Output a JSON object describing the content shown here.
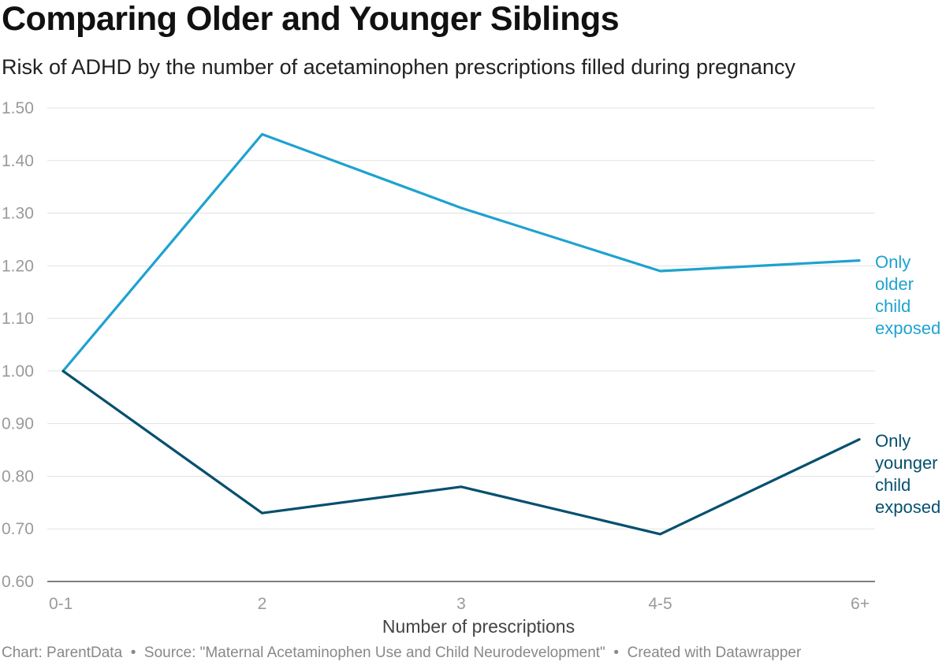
{
  "title": "Comparing Older and Younger Siblings",
  "subtitle": "Risk of ADHD by the number of acetaminophen prescriptions filled during pregnancy",
  "footer": {
    "chart": "Chart: ParentData",
    "source": "Source: \"Maternal Acetaminophen Use and Child Neurodevelopment\"",
    "created": "Created with Datawrapper",
    "separator": "•"
  },
  "chart_data": {
    "type": "line",
    "title": "Comparing Older and Younger Siblings",
    "subtitle": "Risk of ADHD by the number of acetaminophen prescriptions filled during pregnancy",
    "xlabel": "Number of prescriptions",
    "ylabel": "",
    "categories": [
      "0-1",
      "2",
      "3",
      "4-5",
      "6+"
    ],
    "ylim": [
      0.6,
      1.5
    ],
    "yticks": [
      "0.60",
      "0.70",
      "0.80",
      "0.90",
      "1.00",
      "1.10",
      "1.20",
      "1.30",
      "1.40",
      "1.50"
    ],
    "grid": true,
    "series": [
      {
        "name": "Only older child exposed",
        "label_lines": [
          "Only",
          "older",
          "child",
          "exposed"
        ],
        "color": "#1ea2d0",
        "values": [
          1.0,
          1.45,
          1.31,
          1.19,
          1.21
        ]
      },
      {
        "name": "Only younger child exposed",
        "label_lines": [
          "Only",
          "younger",
          "child",
          "exposed"
        ],
        "color": "#04506f",
        "values": [
          1.0,
          0.73,
          0.78,
          0.69,
          0.87
        ]
      }
    ]
  }
}
